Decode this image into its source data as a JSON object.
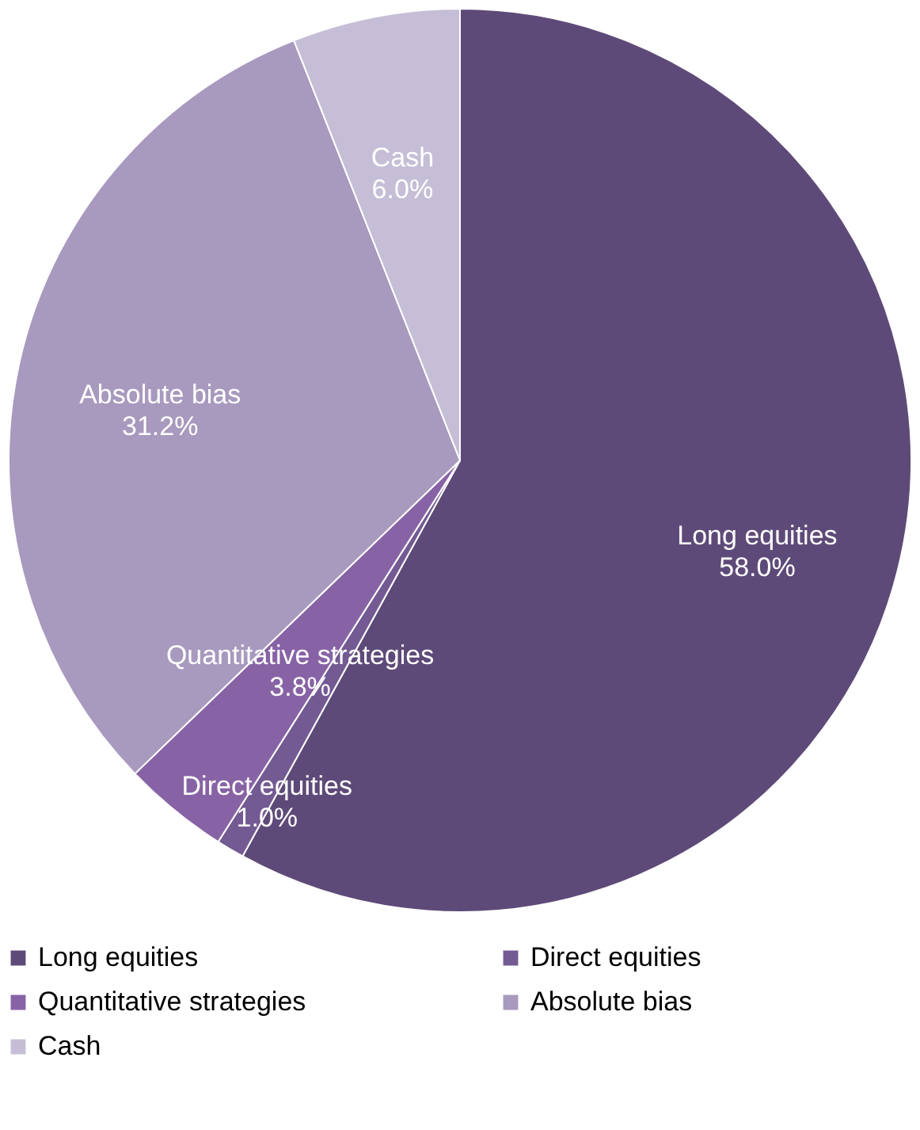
{
  "chart_data": {
    "type": "pie",
    "categories": [
      "Long equities",
      "Direct equities",
      "Quantitative strategies",
      "Absolute bias",
      "Cash"
    ],
    "values": [
      58.0,
      1.0,
      3.8,
      31.2,
      6.0
    ],
    "value_labels": [
      "58.0%",
      "1.0%",
      "3.8%",
      "31.2%",
      "6.0%"
    ],
    "colors": [
      "#5e4a78",
      "#735a93",
      "#8763a6",
      "#a899be",
      "#c6bed6"
    ],
    "legend": "bottom"
  }
}
